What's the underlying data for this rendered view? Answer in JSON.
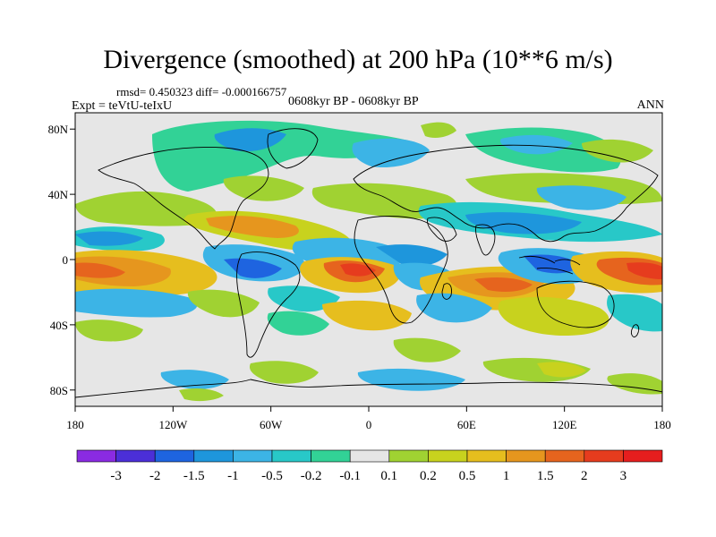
{
  "title": "Divergence (smoothed) at 200 hPa (10**6 m/s)",
  "stats": "rmsd= 0.450323 diff= -0.000166757",
  "experiment": "Expt = teVtU-teIxU",
  "period": "0608kyr BP - 0608kyr BP",
  "season": "ANN",
  "lat_ticks": [
    "80N",
    "40N",
    "0",
    "40S",
    "80S"
  ],
  "lon_ticks": [
    "180",
    "120W",
    "60W",
    "0",
    "60E",
    "120E",
    "180"
  ],
  "legend": {
    "colors": [
      "#8a2be2",
      "#4b2fd8",
      "#1e64e0",
      "#1e96dc",
      "#3cb4e6",
      "#28c8c8",
      "#32d296",
      "#e6e6e6",
      "#a0d232",
      "#c8d21e",
      "#e6be1e",
      "#e6961e",
      "#e6641e",
      "#e63c1e",
      "#e61e1e"
    ],
    "labels": [
      "-3",
      "-2",
      "-1.5",
      "-1",
      "-0.5",
      "-0.2",
      "-0.1",
      "0.1",
      "0.2",
      "0.5",
      "1",
      "1.5",
      "2",
      "3"
    ]
  }
}
